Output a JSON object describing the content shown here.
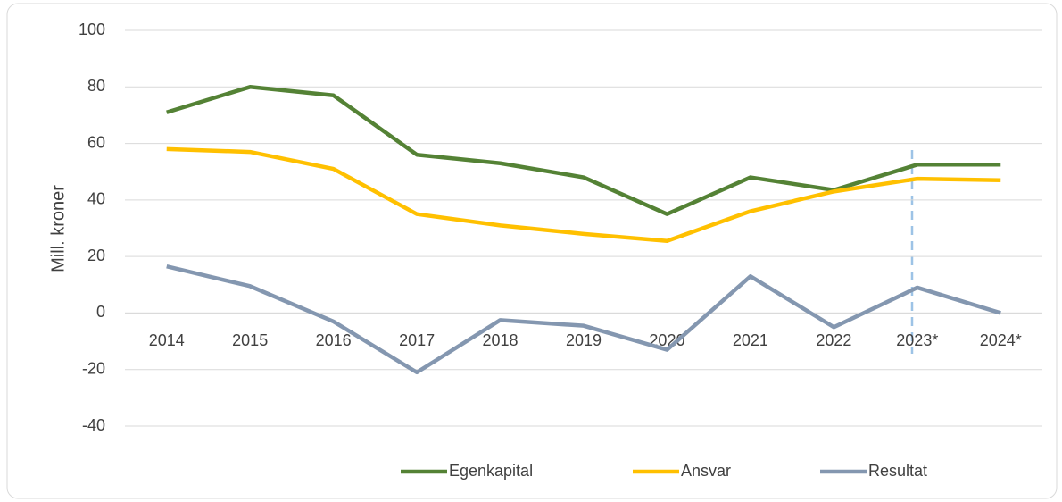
{
  "chart_data": {
    "type": "line",
    "categories": [
      "2014",
      "2015",
      "2016",
      "2017",
      "2018",
      "2019",
      "2020",
      "2021",
      "2022",
      "2023*",
      "2024*"
    ],
    "series": [
      {
        "name": "Egenkapital",
        "color": "#548235",
        "values": [
          71,
          80,
          77,
          56,
          53,
          48,
          35,
          48,
          43.5,
          52.5,
          52.5
        ]
      },
      {
        "name": "Ansvar",
        "color": "#ffc000",
        "values": [
          58,
          57,
          51,
          35,
          31,
          28,
          25.5,
          36,
          43,
          47.5,
          47
        ]
      },
      {
        "name": "Resultat",
        "color": "#8497b0",
        "values": [
          16.5,
          9.5,
          -3,
          -21,
          -2.5,
          -4.5,
          -13,
          13,
          -5,
          9,
          0
        ]
      }
    ],
    "y_label": "Mill. kroner",
    "ylim": [
      -40,
      100
    ],
    "yticks": [
      -40,
      -20,
      0,
      20,
      40,
      60,
      80,
      100
    ],
    "grid": true,
    "legend": "bottom"
  }
}
